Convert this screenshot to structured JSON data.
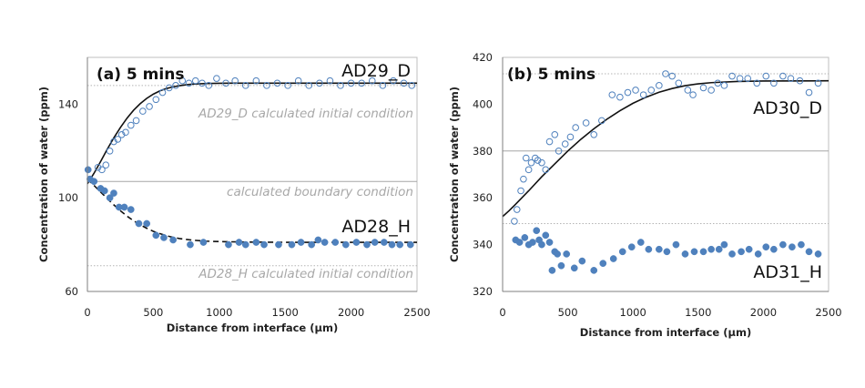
{
  "chart_data": [
    {
      "type": "scatter",
      "title": "(a) 5 mins",
      "xlabel": "Distance from interface (µm)",
      "ylabel": "Concentration of water (ppm)",
      "xlim": [
        0,
        2500
      ],
      "ylim": [
        60,
        160
      ],
      "xticks": [
        "0",
        "500",
        "1000",
        "1500",
        "2000",
        "2500"
      ],
      "yticks": [
        "60",
        "100",
        "140"
      ],
      "grid": false,
      "annotations": [
        {
          "text": "AD29_D calculated initial condition",
          "y": 148
        },
        {
          "text": "calculated boundary condition",
          "y": 107
        },
        {
          "text": "AD28_H calculated initial condition",
          "y": 71
        }
      ],
      "series": [
        {
          "name": "AD29_D",
          "marker": "open-circle",
          "color": "#4f81bd",
          "fit": "solid",
          "x": [
            80,
            110,
            140,
            170,
            200,
            230,
            260,
            290,
            330,
            370,
            420,
            470,
            520,
            570,
            620,
            670,
            720,
            770,
            820,
            870,
            920,
            980,
            1050,
            1120,
            1200,
            1280,
            1360,
            1440,
            1520,
            1600,
            1680,
            1760,
            1840,
            1920,
            2000,
            2080,
            2160,
            2240,
            2320,
            2400,
            2460
          ],
          "y": [
            113,
            112,
            114,
            120,
            124,
            125,
            127,
            128,
            131,
            133,
            137,
            139,
            142,
            145,
            147,
            148,
            150,
            149,
            150,
            149,
            148,
            151,
            149,
            150,
            148,
            150,
            148,
            149,
            148,
            150,
            148,
            149,
            150,
            148,
            149,
            149,
            150,
            148,
            150,
            149,
            148
          ],
          "fit_points": {
            "x": [
              0,
              50,
              100,
              150,
              200,
              250,
              300,
              350,
              400,
              450,
              500,
              550,
              600,
              650,
              700,
              750,
              800,
              900,
              1000,
              1200,
              1500,
              2000,
              2500
            ],
            "y": [
              106,
              110.5,
              115.5,
              120.7,
              125.6,
              130,
              134,
              137.4,
              140.2,
              142.5,
              144.3,
              145.7,
              146.7,
              147.4,
              147.9,
              148.3,
              148.6,
              148.85,
              148.95,
              149,
              149,
              149,
              149
            ]
          }
        },
        {
          "name": "AD28_H",
          "marker": "filled-circle",
          "color": "#4f81bd",
          "fit": "dashed",
          "x": [
            5,
            20,
            50,
            100,
            130,
            170,
            200,
            240,
            280,
            330,
            390,
            450,
            520,
            580,
            650,
            780,
            880,
            1070,
            1150,
            1200,
            1280,
            1340,
            1450,
            1550,
            1620,
            1700,
            1750,
            1800,
            1880,
            1960,
            2040,
            2120,
            2180,
            2250,
            2310,
            2370,
            2450
          ],
          "y": [
            112,
            108,
            107,
            104,
            103,
            100,
            102,
            96,
            96,
            95,
            89,
            89,
            84,
            83,
            82,
            80,
            81,
            80,
            81,
            80,
            81,
            80,
            80,
            80,
            81,
            80,
            82,
            81,
            81,
            80,
            81,
            80,
            81,
            81,
            80,
            80,
            80
          ],
          "fit_points": {
            "x": [
              0,
              50,
              100,
              150,
              200,
              250,
              300,
              350,
              400,
              450,
              500,
              550,
              600,
              650,
              700,
              800,
              900,
              1000,
              1200,
              1500,
              2000,
              2500
            ],
            "y": [
              108,
              105.3,
              102.5,
              99.7,
              97,
              94.5,
              92.2,
              90.2,
              88.5,
              87,
              85.7,
              84.7,
              83.8,
              83.1,
              82.6,
              81.9,
              81.5,
              81.3,
              81.1,
              81,
              81,
              81
            ]
          }
        }
      ]
    },
    {
      "type": "scatter",
      "title": "(b) 5 mins",
      "xlabel": "Distance from interface (µm)",
      "ylabel": "Concentration of water (ppm)",
      "xlim": [
        0,
        2500
      ],
      "ylim": [
        320,
        420
      ],
      "xticks": [
        "0",
        "500",
        "1000",
        "1500",
        "2000",
        "2500"
      ],
      "yticks": [
        "320",
        "340",
        "360",
        "380",
        "400",
        "420"
      ],
      "grid": false,
      "reference_lines": [
        413,
        380,
        349
      ],
      "series": [
        {
          "name": "AD30_D",
          "marker": "open-circle",
          "color": "#4f81bd",
          "fit": "solid",
          "x": [
            90,
            110,
            140,
            160,
            180,
            200,
            220,
            250,
            270,
            300,
            330,
            360,
            400,
            430,
            480,
            520,
            560,
            640,
            700,
            760,
            840,
            900,
            960,
            1020,
            1080,
            1140,
            1200,
            1250,
            1300,
            1350,
            1420,
            1460,
            1540,
            1600,
            1650,
            1700,
            1760,
            1820,
            1880,
            1950,
            2020,
            2080,
            2150,
            2210,
            2280,
            2350,
            2420
          ],
          "y": [
            350,
            355,
            363,
            368,
            377,
            372,
            375,
            377,
            376,
            375,
            372,
            384,
            387,
            380,
            383,
            386,
            390,
            392,
            387,
            393,
            404,
            403,
            405,
            406,
            404,
            406,
            408,
            413,
            412,
            409,
            406,
            404,
            407,
            406,
            409,
            408,
            412,
            411,
            411,
            409,
            412,
            409,
            412,
            411,
            410,
            405,
            409
          ],
          "fit_points": {
            "x": [
              0,
              50,
              100,
              200,
              300,
              400,
              500,
              600,
              700,
              800,
              900,
              1000,
              1100,
              1200,
              1300,
              1400,
              1500,
              1600,
              1800,
              2000,
              2500
            ],
            "y": [
              352,
              354.5,
              357.3,
              363,
              369,
              374.5,
              380,
              385,
              389.5,
              393.6,
              397.2,
              400.4,
              403,
              405.1,
              406.7,
              407.9,
              408.7,
              409.2,
              409.7,
              409.9,
              410
            ]
          }
        },
        {
          "name": "AD31_H",
          "marker": "filled-circle",
          "color": "#4f81bd",
          "fit": "none",
          "x": [
            100,
            130,
            170,
            200,
            230,
            260,
            280,
            300,
            330,
            360,
            380,
            400,
            420,
            450,
            490,
            550,
            610,
            700,
            770,
            850,
            920,
            990,
            1060,
            1120,
            1200,
            1260,
            1330,
            1400,
            1470,
            1540,
            1600,
            1660,
            1700,
            1760,
            1830,
            1890,
            1960,
            2020,
            2080,
            2150,
            2220,
            2290,
            2350,
            2420
          ],
          "y": [
            342,
            341,
            343,
            340,
            341,
            346,
            342,
            340,
            344,
            341,
            329,
            337,
            336,
            331,
            336,
            330,
            333,
            329,
            332,
            334,
            337,
            339,
            341,
            338,
            338,
            337,
            340,
            336,
            337,
            337,
            338,
            338,
            340,
            336,
            337,
            338,
            336,
            339,
            338,
            340,
            339,
            340,
            337,
            336
          ]
        }
      ]
    }
  ]
}
